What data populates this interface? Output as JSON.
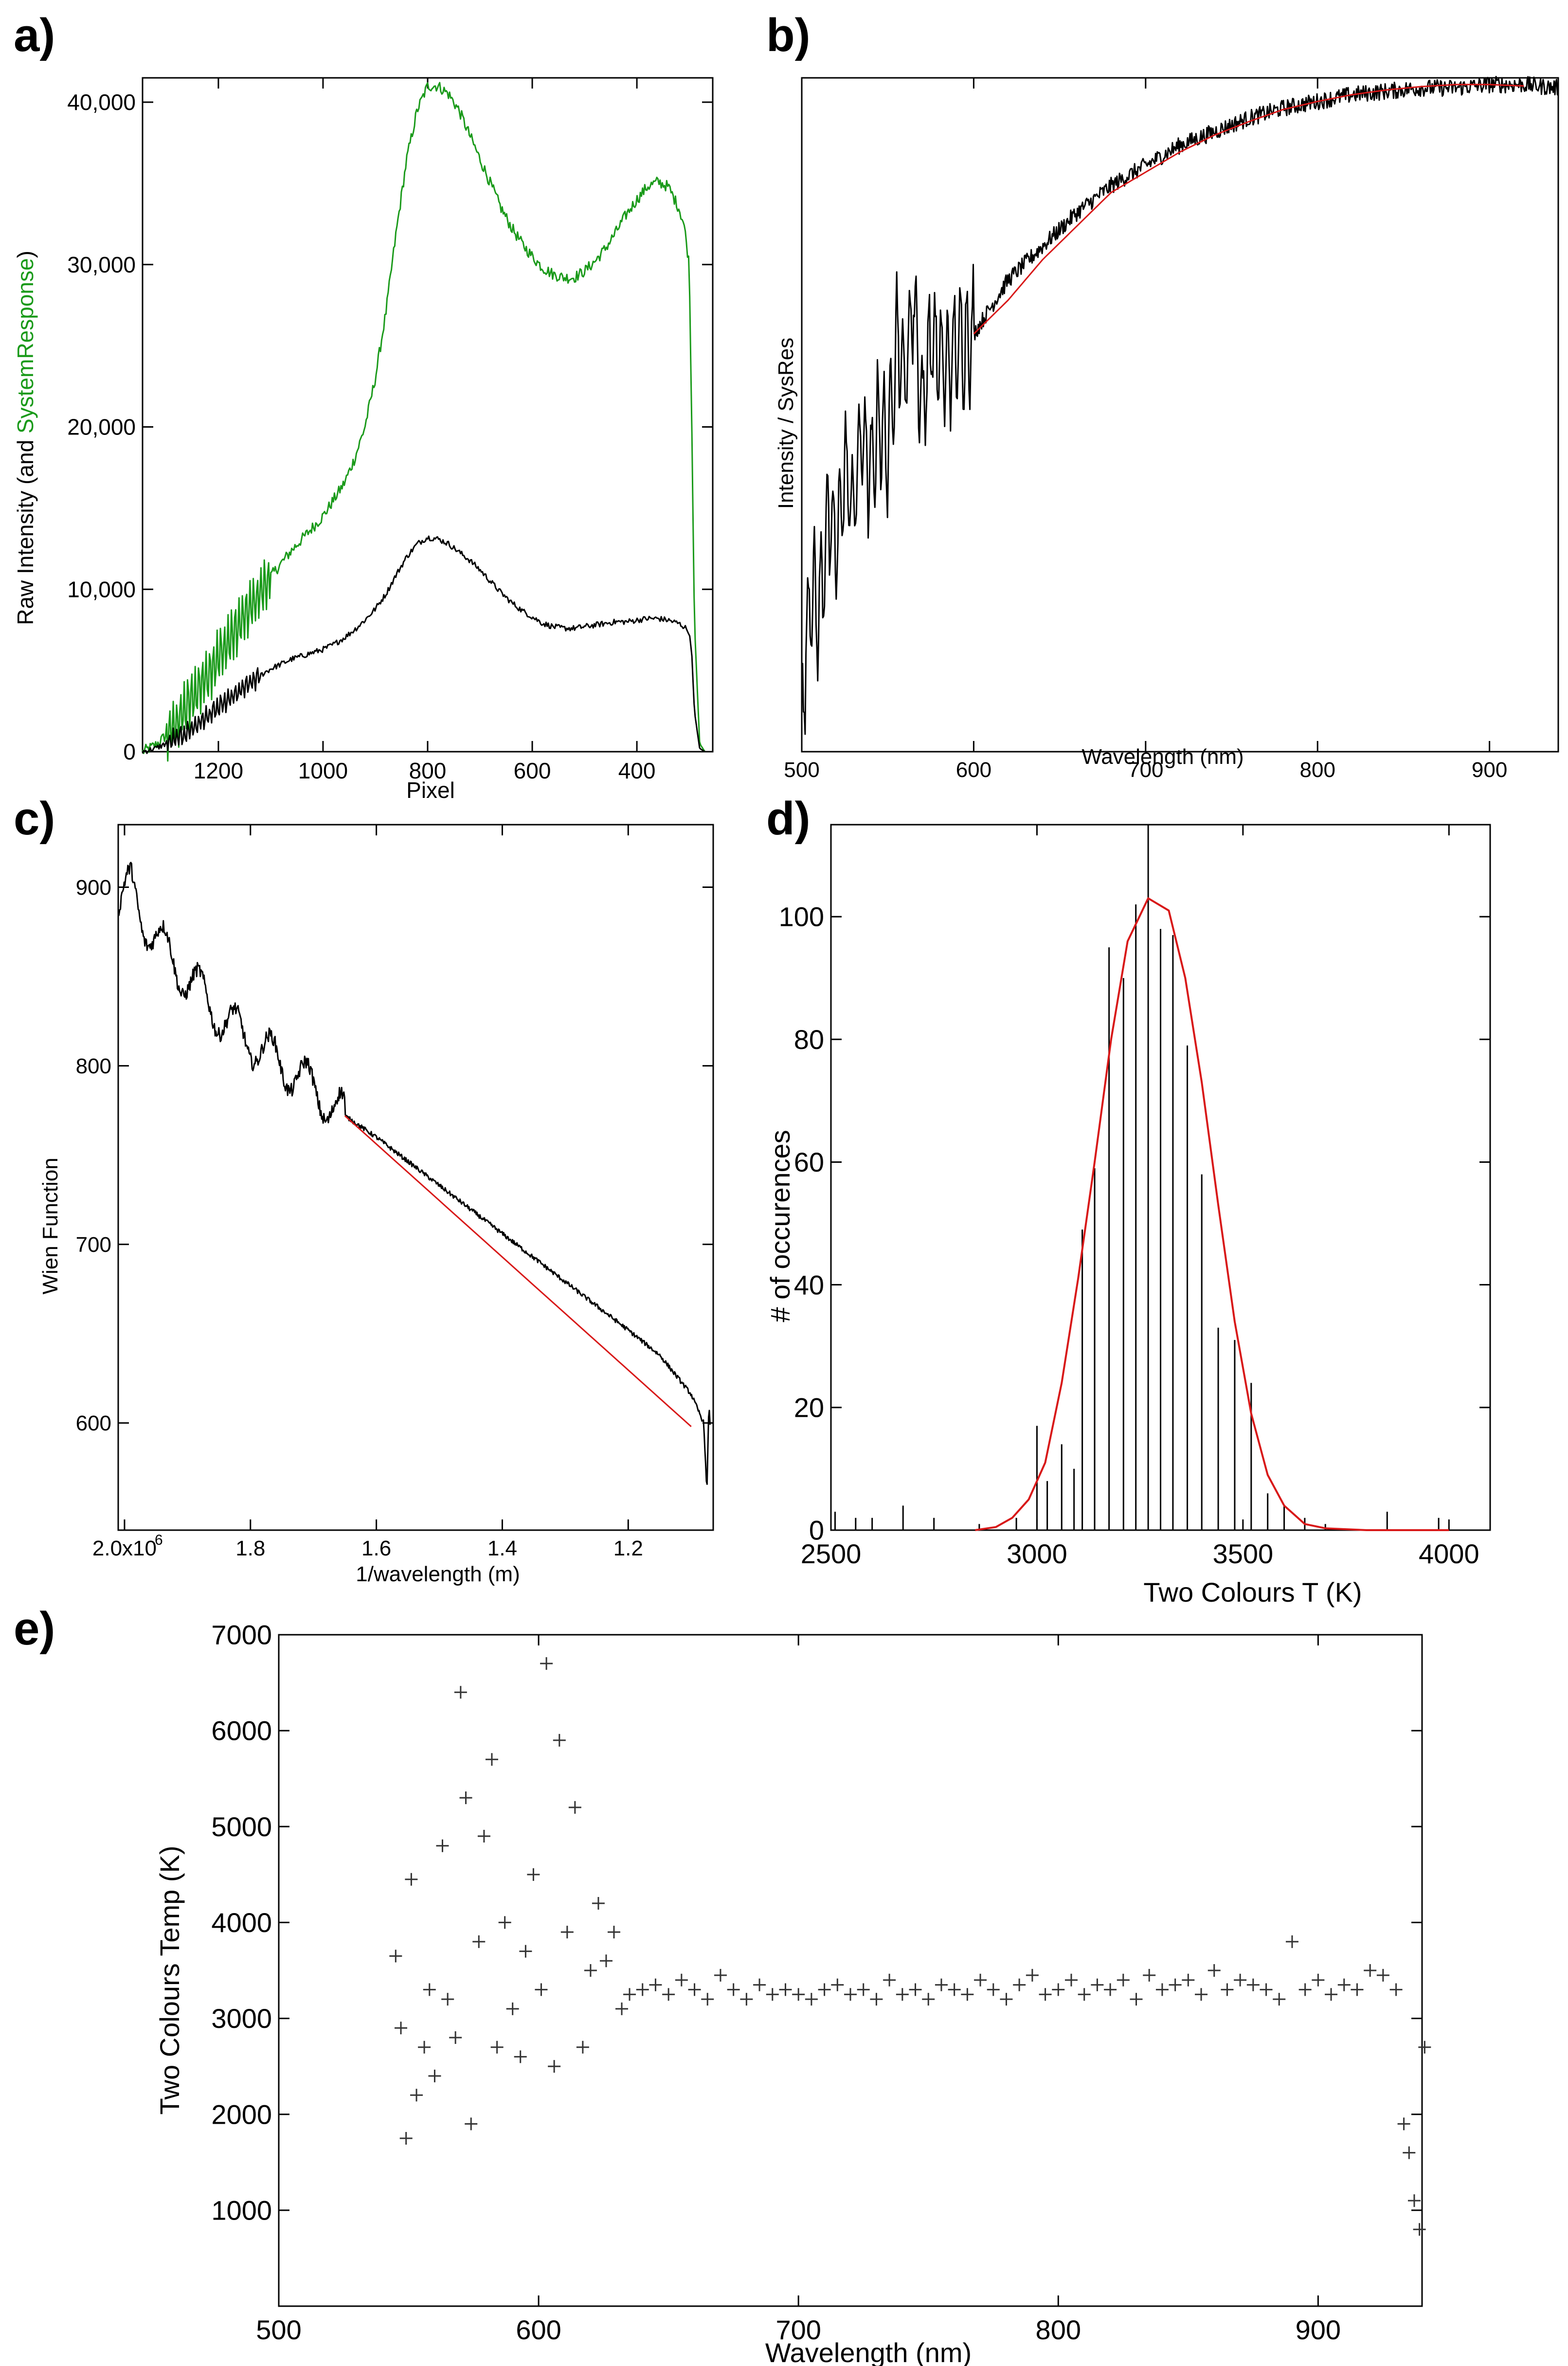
{
  "figure": {
    "panel_labels": [
      "a)",
      "b)",
      "c)",
      "d)",
      "e)"
    ]
  },
  "chart_data": [
    {
      "id": "a",
      "type": "line",
      "xlabel": "Pixel",
      "ylabel_parts": [
        "Raw Intensity (and ",
        "SystemResponse",
        ")"
      ],
      "xlim": [
        1345,
        255
      ],
      "ylim": [
        0,
        41500
      ],
      "x_ticks": [
        1200,
        1000,
        800,
        600,
        400
      ],
      "x_tick_labels": [
        "1200",
        "1000",
        "800",
        "600",
        "400"
      ],
      "y_ticks": [
        0,
        10000,
        20000,
        30000,
        40000
      ],
      "y_tick_labels": [
        "0",
        "10,000",
        "20,000",
        "30,000",
        "40,000"
      ],
      "series": [
        {
          "name": "SystemResponse",
          "color": "#1a9a1a",
          "x": [
            1345,
            1320,
            1300,
            1280,
            1260,
            1240,
            1220,
            1200,
            1180,
            1160,
            1140,
            1120,
            1100,
            1080,
            1060,
            1040,
            1020,
            1000,
            980,
            960,
            940,
            920,
            900,
            880,
            860,
            840,
            820,
            800,
            780,
            760,
            740,
            720,
            700,
            680,
            660,
            640,
            620,
            600,
            580,
            560,
            540,
            520,
            500,
            480,
            460,
            440,
            420,
            400,
            380,
            360,
            340,
            320,
            310,
            300,
            295,
            290,
            280,
            270,
            255
          ],
          "y": [
            0,
            400,
            1000,
            1800,
            2800,
            3800,
            4800,
            5800,
            6800,
            7800,
            8800,
            9800,
            10800,
            11600,
            12400,
            13100,
            13800,
            14500,
            15500,
            16500,
            18000,
            20000,
            23000,
            27000,
            32000,
            36500,
            39500,
            41000,
            41000,
            40500,
            39500,
            38000,
            36500,
            35000,
            33500,
            32300,
            31300,
            30500,
            29800,
            29400,
            29200,
            29200,
            29600,
            30200,
            31000,
            32000,
            33100,
            34000,
            34800,
            35100,
            34800,
            33500,
            32500,
            30000,
            20000,
            8000,
            500,
            0,
            0
          ]
        },
        {
          "name": "Raw Intensity",
          "color": "#000000",
          "x": [
            1345,
            1320,
            1300,
            1280,
            1260,
            1240,
            1220,
            1200,
            1180,
            1160,
            1140,
            1120,
            1100,
            1080,
            1060,
            1040,
            1020,
            1000,
            980,
            960,
            940,
            920,
            900,
            880,
            860,
            840,
            820,
            800,
            780,
            760,
            740,
            720,
            700,
            680,
            660,
            640,
            620,
            600,
            580,
            560,
            540,
            520,
            500,
            480,
            460,
            440,
            420,
            400,
            380,
            360,
            340,
            320,
            310,
            300,
            295,
            290,
            280,
            270,
            255
          ],
          "y": [
            0,
            200,
            500,
            800,
            1200,
            1700,
            2200,
            2700,
            3200,
            3700,
            4200,
            4700,
            5100,
            5400,
            5700,
            5900,
            6100,
            6300,
            6600,
            7000,
            7500,
            8100,
            8800,
            9700,
            10900,
            12000,
            12800,
            13200,
            13100,
            12800,
            12300,
            11800,
            11200,
            10500,
            9800,
            9200,
            8700,
            8300,
            7900,
            7700,
            7600,
            7600,
            7700,
            7800,
            7900,
            8000,
            8000,
            8100,
            8200,
            8200,
            8100,
            7900,
            7700,
            7400,
            6000,
            2500,
            200,
            0,
            0
          ]
        }
      ]
    },
    {
      "id": "b",
      "type": "line",
      "xlabel": "Wavelength (nm)",
      "ylabel": "Intensity / SysRes",
      "xlim": [
        500,
        940
      ],
      "ylim": [
        0,
        1
      ],
      "x_ticks": [
        500,
        600,
        700,
        800,
        900
      ],
      "x_tick_labels": [
        "500",
        "600",
        "700",
        "800",
        "900"
      ],
      "series": [
        {
          "name": "Intensity / SysRes",
          "color": "#000000",
          "x": [
            500,
            505,
            510,
            515,
            520,
            525,
            530,
            535,
            540,
            545,
            550,
            555,
            560,
            565,
            570,
            575,
            580,
            585,
            590,
            600,
            610,
            620,
            640,
            660,
            680,
            700,
            720,
            740,
            760,
            780,
            800,
            820,
            840,
            860,
            880,
            900,
            920,
            940
          ],
          "y": [
            0.05,
            0.25,
            0.2,
            0.35,
            0.3,
            0.42,
            0.36,
            0.48,
            0.4,
            0.5,
            0.44,
            0.62,
            0.55,
            0.68,
            0.5,
            0.62,
            0.58,
            0.57,
            0.6,
            0.62,
            0.66,
            0.7,
            0.75,
            0.8,
            0.84,
            0.87,
            0.9,
            0.92,
            0.94,
            0.955,
            0.965,
            0.975,
            0.98,
            0.985,
            0.985,
            0.99,
            0.99,
            0.985
          ]
        },
        {
          "name": "fit",
          "color": "#d81818",
          "x": [
            600,
            620,
            640,
            660,
            680,
            700,
            720,
            740,
            760,
            780,
            800,
            820,
            840,
            860,
            880,
            900,
            920
          ],
          "y": [
            0.62,
            0.67,
            0.73,
            0.78,
            0.83,
            0.86,
            0.89,
            0.915,
            0.935,
            0.953,
            0.965,
            0.975,
            0.982,
            0.987,
            0.99,
            0.99,
            0.988
          ]
        }
      ]
    },
    {
      "id": "c",
      "type": "line",
      "xlabel": "1/wavelength (m)",
      "ylabel": "Wien Function",
      "xlim": [
        2010000,
        1065000
      ],
      "ylim": [
        540,
        935
      ],
      "x_ticks": [
        2000000,
        1800000,
        1600000,
        1400000,
        1200000
      ],
      "x_tick_labels": [
        "2.0x10",
        "1.8",
        "1.6",
        "1.4",
        "1.2"
      ],
      "x_tick_exponent": "6",
      "y_ticks": [
        600,
        700,
        800,
        900
      ],
      "y_tick_labels": [
        "600",
        "700",
        "800",
        "900"
      ],
      "series": [
        {
          "name": "Wien Function",
          "color": "#000000",
          "x": [
            2010000,
            1990000,
            1970000,
            1950000,
            1930000,
            1910000,
            1890000,
            1870000,
            1850000,
            1830000,
            1810000,
            1790000,
            1770000,
            1750000,
            1730000,
            1710000,
            1690000,
            1670000,
            1650000,
            1600000,
            1500000,
            1400000,
            1300000,
            1200000,
            1150000,
            1100000,
            1080000,
            1075000,
            1072000,
            1070000
          ],
          "y": [
            888,
            900,
            882,
            872,
            862,
            852,
            846,
            836,
            829,
            822,
            816,
            812,
            806,
            800,
            796,
            790,
            784,
            777,
            772,
            760,
            733,
            706,
            679,
            652,
            638,
            616,
            600,
            560,
            610,
            600
          ]
        },
        {
          "name": "fit",
          "color": "#d81818",
          "x": [
            1650000,
            1100000
          ],
          "y": [
            772,
            598
          ]
        }
      ]
    },
    {
      "id": "d",
      "type": "bar",
      "xlabel": "Two Colours T (K)",
      "ylabel": "# of occurences",
      "xlim": [
        2500,
        4100
      ],
      "ylim": [
        0,
        115
      ],
      "x_ticks": [
        2500,
        3000,
        3500,
        4000
      ],
      "x_tick_labels": [
        "2500",
        "3000",
        "3500",
        "4000"
      ],
      "y_ticks": [
        0,
        20,
        40,
        60,
        80,
        100
      ],
      "y_tick_labels": [
        "0",
        "20",
        "40",
        "60",
        "80",
        "100"
      ],
      "bars_x": [
        2510,
        2560,
        2600,
        2675,
        2750,
        2860,
        2950,
        3000,
        3025,
        3060,
        3090,
        3110,
        3140,
        3175,
        3210,
        3240,
        3270,
        3300,
        3330,
        3365,
        3400,
        3440,
        3480,
        3520,
        3560,
        3600,
        3650,
        3700,
        3850,
        3975
      ],
      "bars_y": [
        3,
        2,
        2,
        4,
        2,
        1,
        2,
        17,
        8,
        14,
        10,
        49,
        59,
        95,
        90,
        102,
        115,
        98,
        97,
        79,
        58,
        33,
        31,
        24,
        6,
        4,
        2,
        1,
        3,
        2
      ],
      "fit": {
        "name": "fit",
        "color": "#d81818",
        "x": [
          2850,
          2900,
          2940,
          2980,
          3020,
          3060,
          3100,
          3140,
          3180,
          3220,
          3270,
          3320,
          3360,
          3400,
          3440,
          3480,
          3520,
          3560,
          3600,
          3650,
          3700,
          3800,
          4000
        ],
        "y": [
          0,
          0.5,
          2,
          5,
          11,
          24,
          41,
          60,
          80,
          96,
          103,
          101,
          90,
          73,
          53,
          34,
          19,
          9,
          4,
          1,
          0.3,
          0,
          0
        ]
      }
    },
    {
      "id": "e",
      "type": "scatter",
      "marker": "+",
      "xlabel": "Wavelength (nm)",
      "ylabel": "Two Colours Temp (K)",
      "xlim": [
        500,
        940
      ],
      "ylim": [
        0,
        7000
      ],
      "x_ticks": [
        500,
        600,
        700,
        800,
        900
      ],
      "x_tick_labels": [
        "500",
        "600",
        "700",
        "800",
        "900"
      ],
      "y_ticks": [
        1000,
        2000,
        3000,
        4000,
        5000,
        6000,
        7000
      ],
      "y_tick_labels": [
        "1000",
        "2000",
        "3000",
        "4000",
        "5000",
        "6000",
        "7000"
      ],
      "points_x": [
        545,
        547,
        549,
        551,
        553,
        556,
        558,
        560,
        563,
        565,
        568,
        570,
        572,
        574,
        577,
        579,
        582,
        584,
        587,
        590,
        593,
        595,
        598,
        601,
        603,
        606,
        608,
        611,
        614,
        617,
        620,
        623,
        626,
        629,
        632,
        635,
        640,
        645,
        650,
        655,
        660,
        665,
        670,
        675,
        680,
        685,
        690,
        695,
        700,
        705,
        710,
        715,
        720,
        725,
        730,
        735,
        740,
        745,
        750,
        755,
        760,
        765,
        770,
        775,
        780,
        785,
        790,
        795,
        800,
        805,
        810,
        815,
        820,
        825,
        830,
        835,
        840,
        845,
        850,
        855,
        860,
        865,
        870,
        875,
        880,
        885,
        890,
        895,
        900,
        905,
        910,
        915,
        920,
        925,
        930,
        933,
        935,
        937,
        939,
        941
      ],
      "points_y": [
        3650,
        2900,
        1750,
        4450,
        2200,
        2700,
        3300,
        2400,
        4800,
        3200,
        2800,
        6400,
        5300,
        1900,
        3800,
        4900,
        5700,
        2700,
        4000,
        3100,
        2600,
        3700,
        4500,
        3300,
        6700,
        2500,
        5900,
        3900,
        5200,
        2700,
        3500,
        4200,
        3600,
        3900,
        3100,
        3250,
        3300,
        3350,
        3250,
        3400,
        3300,
        3200,
        3450,
        3300,
        3200,
        3350,
        3250,
        3300,
        3250,
        3200,
        3300,
        3350,
        3250,
        3300,
        3200,
        3400,
        3250,
        3300,
        3200,
        3350,
        3300,
        3250,
        3400,
        3300,
        3200,
        3350,
        3450,
        3250,
        3300,
        3400,
        3250,
        3350,
        3300,
        3400,
        3200,
        3450,
        3300,
        3350,
        3400,
        3250,
        3500,
        3300,
        3400,
        3350,
        3300,
        3200,
        3800,
        3300,
        3400,
        3250,
        3350,
        3300,
        3500,
        3450,
        3300,
        1900,
        1600,
        1100,
        800,
        2700
      ]
    }
  ]
}
